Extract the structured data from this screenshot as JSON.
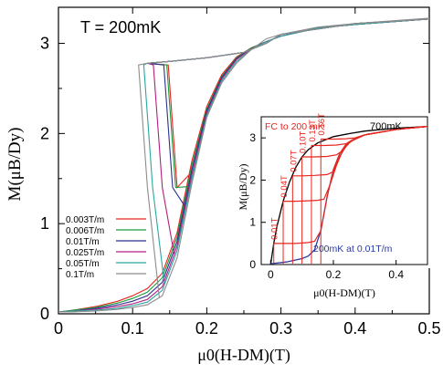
{
  "chart_data": [
    {
      "type": "line",
      "annotation": "T = 200mK",
      "xlabel": "μ0(H-DM)(T)",
      "ylabel": "M(μB/Dy)",
      "xlim": [
        0,
        0.5
      ],
      "ylim": [
        0,
        3.4
      ],
      "x_ticks": [
        "0",
        "0.1",
        "0.2",
        "0.3",
        "0.4",
        "0.5"
      ],
      "y_ticks": [
        "0",
        "1",
        "2",
        "3"
      ],
      "legend_position": "lower-left",
      "grid": false,
      "series": [
        {
          "name": "0.003T/m",
          "color": "#e8261e",
          "switch_field": 0.148,
          "x": [
            0,
            0.02,
            0.05,
            0.08,
            0.1,
            0.12,
            0.14,
            0.16,
            0.18,
            0.2,
            0.22,
            0.24,
            0.26,
            0.28,
            0.3,
            0.35,
            0.4,
            0.45,
            0.5
          ],
          "y": [
            0.02,
            0.04,
            0.08,
            0.14,
            0.2,
            0.28,
            0.45,
            0.9,
            1.7,
            2.3,
            2.65,
            2.85,
            2.95,
            3.02,
            3.08,
            3.17,
            3.21,
            3.24,
            3.27
          ]
        },
        {
          "name": "0.006T/m",
          "color": "#1a9a3c",
          "switch_field": 0.146,
          "x": [
            0,
            0.02,
            0.05,
            0.08,
            0.1,
            0.12,
            0.14,
            0.16,
            0.18,
            0.2,
            0.22,
            0.24,
            0.26,
            0.28,
            0.3,
            0.35,
            0.4,
            0.45,
            0.5
          ],
          "y": [
            0.02,
            0.04,
            0.07,
            0.12,
            0.17,
            0.24,
            0.4,
            0.85,
            1.65,
            2.27,
            2.63,
            2.84,
            2.95,
            3.02,
            3.08,
            3.17,
            3.21,
            3.24,
            3.27
          ]
        },
        {
          "name": "0.01T/m",
          "color": "#2d2f8f",
          "switch_field": 0.142,
          "x": [
            0,
            0.02,
            0.05,
            0.08,
            0.1,
            0.12,
            0.14,
            0.16,
            0.18,
            0.2,
            0.22,
            0.24,
            0.26,
            0.28,
            0.3,
            0.35,
            0.4,
            0.45,
            0.5
          ],
          "y": [
            0.02,
            0.03,
            0.06,
            0.1,
            0.14,
            0.2,
            0.35,
            0.8,
            1.6,
            2.25,
            2.62,
            2.83,
            2.94,
            3.02,
            3.08,
            3.17,
            3.21,
            3.24,
            3.27
          ]
        },
        {
          "name": "0.025T/m",
          "color": "#b0207e",
          "switch_field": 0.128,
          "x": [
            0,
            0.02,
            0.05,
            0.08,
            0.1,
            0.12,
            0.14,
            0.16,
            0.18,
            0.2,
            0.22,
            0.24,
            0.26,
            0.28,
            0.3,
            0.35,
            0.4,
            0.45,
            0.5
          ],
          "y": [
            0.02,
            0.03,
            0.05,
            0.08,
            0.11,
            0.16,
            0.3,
            0.75,
            1.55,
            2.22,
            2.6,
            2.82,
            2.94,
            3.02,
            3.08,
            3.17,
            3.21,
            3.24,
            3.27
          ]
        },
        {
          "name": "0.05T/m",
          "color": "#2aa6a0",
          "switch_field": 0.115,
          "x": [
            0,
            0.02,
            0.05,
            0.08,
            0.1,
            0.12,
            0.14,
            0.16,
            0.18,
            0.2,
            0.22,
            0.24,
            0.26,
            0.28,
            0.3,
            0.35,
            0.4,
            0.45,
            0.5
          ],
          "y": [
            0.02,
            0.03,
            0.04,
            0.06,
            0.09,
            0.13,
            0.26,
            0.7,
            1.5,
            2.2,
            2.58,
            2.8,
            2.93,
            3.02,
            3.08,
            3.17,
            3.21,
            3.24,
            3.27
          ]
        },
        {
          "name": "0.1T/m",
          "color": "#8c8c8c",
          "switch_field": 0.108,
          "x": [
            0,
            0.02,
            0.05,
            0.08,
            0.1,
            0.12,
            0.14,
            0.16,
            0.18,
            0.2,
            0.22,
            0.24,
            0.26,
            0.28,
            0.3,
            0.35,
            0.4,
            0.45,
            0.5
          ],
          "y": [
            0.02,
            0.02,
            0.03,
            0.05,
            0.07,
            0.1,
            0.2,
            0.62,
            1.45,
            2.18,
            2.56,
            2.78,
            2.93,
            3.05,
            3.1,
            3.18,
            3.22,
            3.25,
            3.28
          ]
        }
      ]
    },
    {
      "type": "line",
      "xlabel": "μ0(H-DM)(T)",
      "ylabel": "M(μB/Dy)",
      "xlim": [
        -0.03,
        0.5
      ],
      "ylim": [
        0,
        3.5
      ],
      "x_ticks": [
        "0",
        "0.2",
        "0.4"
      ],
      "y_ticks": [
        "0",
        "1",
        "2",
        "3"
      ],
      "labels": [
        "FC to 200 mK",
        "700mK",
        "200mK at 0.01T/m"
      ],
      "fc_fields": [
        "0.01T",
        "0.04T",
        "0.07T",
        "0.10T",
        "0.13T",
        "0.16T"
      ],
      "series": [
        {
          "name": "700mK",
          "color": "#000000",
          "x": [
            0,
            0.01,
            0.02,
            0.04,
            0.06,
            0.08,
            0.1,
            0.12,
            0.15,
            0.2,
            0.25,
            0.3,
            0.4,
            0.5
          ],
          "y": [
            0,
            0.5,
            0.9,
            1.5,
            1.95,
            2.3,
            2.55,
            2.72,
            2.88,
            3.03,
            3.1,
            3.16,
            3.23,
            3.27
          ]
        },
        {
          "name": "200mK at 0.01T/m",
          "color": "#2b3aa0",
          "x": [
            0,
            0.05,
            0.1,
            0.12,
            0.14,
            0.16,
            0.18,
            0.2,
            0.22,
            0.24,
            0.26,
            0.3,
            0.4,
            0.5
          ],
          "y": [
            0.02,
            0.06,
            0.14,
            0.2,
            0.35,
            0.8,
            1.6,
            2.25,
            2.62,
            2.84,
            2.95,
            3.07,
            3.2,
            3.27
          ]
        },
        {
          "name": "FC 0.01T",
          "color": "#e8261e",
          "x": [
            0.01,
            0.04,
            0.08,
            0.12,
            0.14,
            0.16,
            0.18,
            0.2,
            0.22,
            0.24,
            0.26,
            0.3,
            0.4,
            0.5
          ],
          "y": [
            0.5,
            0.5,
            0.5,
            0.52,
            0.55,
            0.8,
            1.6,
            2.25,
            2.62,
            2.84,
            2.95,
            3.07,
            3.2,
            3.27
          ]
        },
        {
          "name": "FC 0.04T",
          "color": "#e8261e",
          "x": [
            0.04,
            0.08,
            0.12,
            0.15,
            0.17,
            0.19,
            0.21,
            0.23,
            0.25,
            0.3,
            0.4,
            0.5
          ],
          "y": [
            1.5,
            1.5,
            1.51,
            1.52,
            1.55,
            1.9,
            2.35,
            2.7,
            2.9,
            3.07,
            3.2,
            3.27
          ]
        },
        {
          "name": "FC 0.07T",
          "color": "#e8261e",
          "x": [
            0.07,
            0.1,
            0.14,
            0.18,
            0.2,
            0.22,
            0.24,
            0.26,
            0.3,
            0.4,
            0.5
          ],
          "y": [
            2.1,
            2.1,
            2.11,
            2.13,
            2.2,
            2.55,
            2.8,
            2.95,
            3.07,
            3.2,
            3.27
          ]
        },
        {
          "name": "FC 0.10T",
          "color": "#e8261e",
          "x": [
            0.1,
            0.14,
            0.18,
            0.21,
            0.23,
            0.25,
            0.27,
            0.3,
            0.4,
            0.5
          ],
          "y": [
            2.55,
            2.55,
            2.56,
            2.6,
            2.7,
            2.88,
            2.98,
            3.07,
            3.2,
            3.27
          ]
        },
        {
          "name": "FC 0.13T",
          "color": "#e8261e",
          "x": [
            0.13,
            0.17,
            0.21,
            0.24,
            0.26,
            0.28,
            0.3,
            0.4,
            0.5
          ],
          "y": [
            2.82,
            2.82,
            2.83,
            2.86,
            2.95,
            3.02,
            3.07,
            3.2,
            3.27
          ]
        },
        {
          "name": "FC 0.16T",
          "color": "#e8261e",
          "x": [
            0.16,
            0.2,
            0.24,
            0.27,
            0.29,
            0.31,
            0.4,
            0.5
          ],
          "y": [
            2.97,
            2.97,
            2.98,
            3.0,
            3.05,
            3.09,
            3.2,
            3.27
          ]
        }
      ]
    }
  ]
}
